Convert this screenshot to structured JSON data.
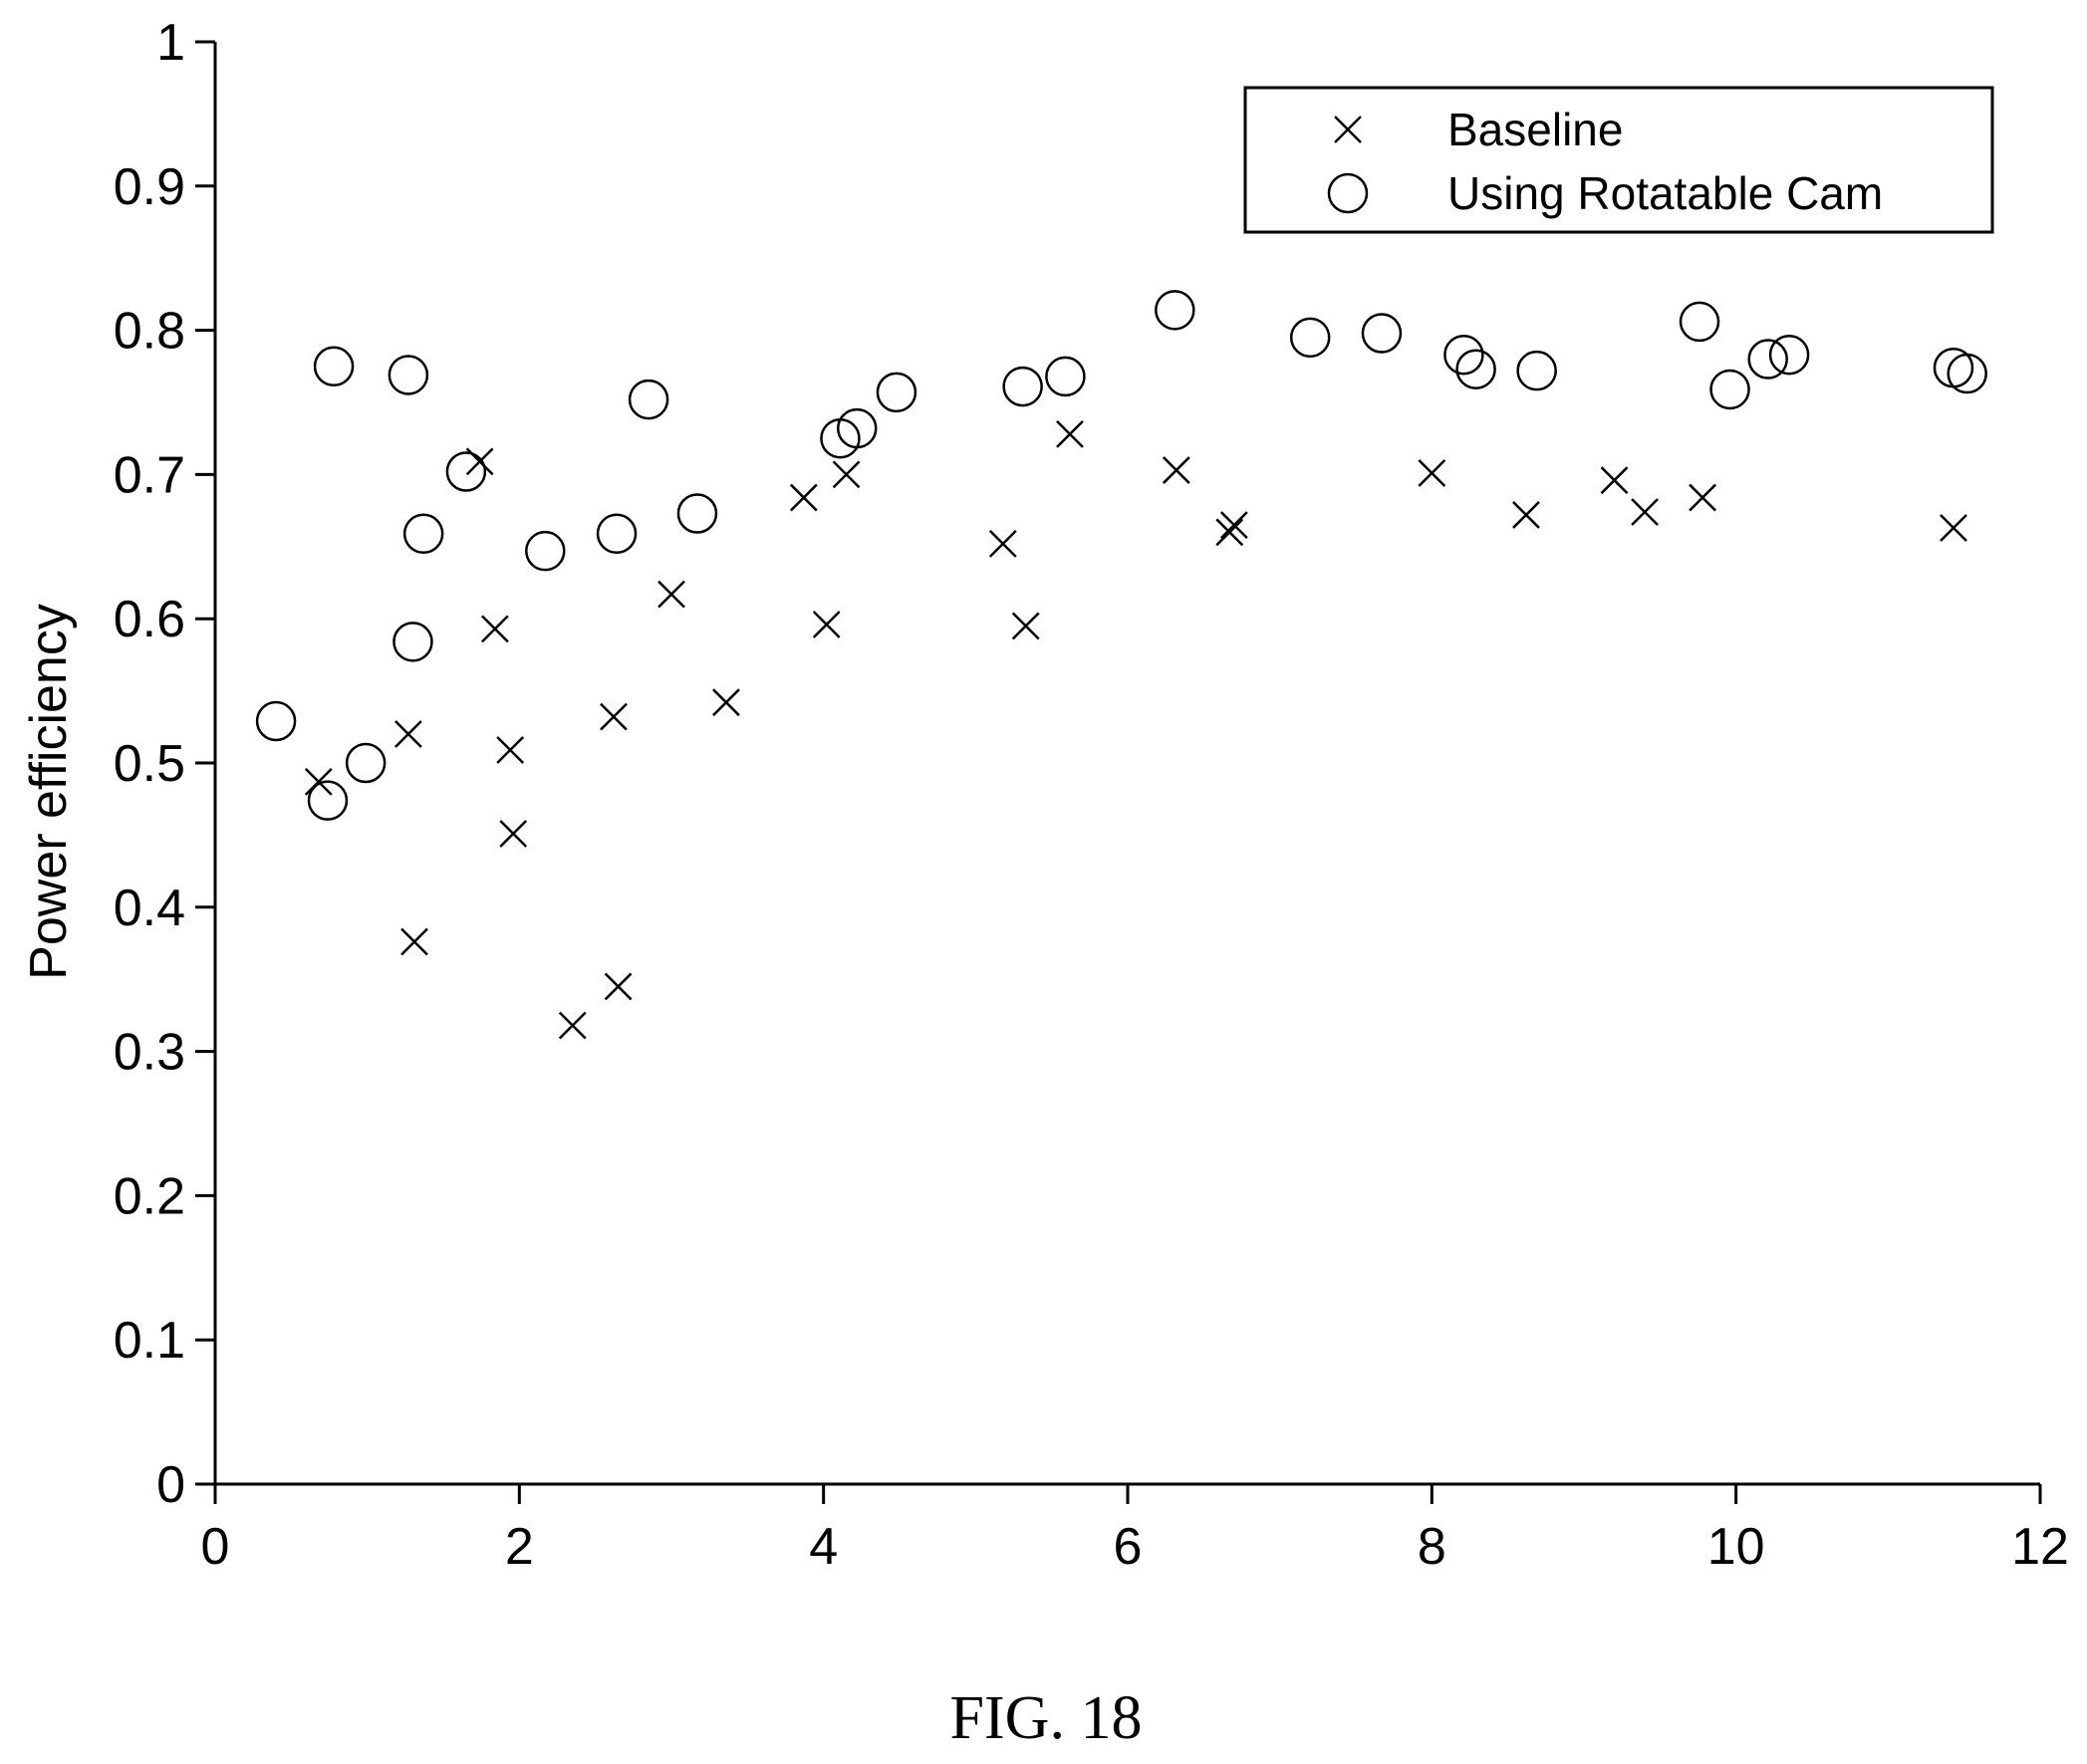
{
  "caption": "FIG. 18",
  "chart_data": {
    "type": "scatter",
    "title": "",
    "xlabel": "",
    "ylabel": "Power efficiency",
    "xlim": [
      0,
      12
    ],
    "ylim": [
      0,
      1
    ],
    "xticks": [
      "0",
      "2",
      "4",
      "6",
      "8",
      "10",
      "12"
    ],
    "yticks": [
      "0",
      "0.1",
      "0.2",
      "0.3",
      "0.4",
      "0.5",
      "0.6",
      "0.7",
      "0.8",
      "0.9",
      "1"
    ],
    "grid": false,
    "legend_position": "top-right",
    "series": [
      {
        "name": "Baseline",
        "marker": "x",
        "color": "#000000",
        "points": [
          [
            0.68,
            0.487
          ],
          [
            1.27,
            0.52
          ],
          [
            1.31,
            0.376
          ],
          [
            1.74,
            0.709
          ],
          [
            1.84,
            0.593
          ],
          [
            1.94,
            0.509
          ],
          [
            1.96,
            0.451
          ],
          [
            2.35,
            0.318
          ],
          [
            2.62,
            0.532
          ],
          [
            2.65,
            0.345
          ],
          [
            3.0,
            0.617
          ],
          [
            3.36,
            0.542
          ],
          [
            3.87,
            0.684
          ],
          [
            4.02,
            0.596
          ],
          [
            4.15,
            0.7
          ],
          [
            5.18,
            0.652
          ],
          [
            5.33,
            0.595
          ],
          [
            5.62,
            0.728
          ],
          [
            6.32,
            0.703
          ],
          [
            6.67,
            0.66
          ],
          [
            6.7,
            0.665
          ],
          [
            8.0,
            0.701
          ],
          [
            8.62,
            0.672
          ],
          [
            9.2,
            0.696
          ],
          [
            9.4,
            0.674
          ],
          [
            9.78,
            0.684
          ],
          [
            11.43,
            0.663
          ]
        ]
      },
      {
        "name": "Using Rotatable Cam",
        "marker": "o",
        "color": "#000000",
        "points": [
          [
            0.4,
            0.529
          ],
          [
            0.74,
            0.474
          ],
          [
            0.78,
            0.775
          ],
          [
            0.99,
            0.5
          ],
          [
            1.27,
            0.769
          ],
          [
            1.3,
            0.584
          ],
          [
            1.37,
            0.659
          ],
          [
            1.65,
            0.702
          ],
          [
            2.17,
            0.647
          ],
          [
            2.64,
            0.659
          ],
          [
            2.85,
            0.752
          ],
          [
            3.17,
            0.673
          ],
          [
            4.11,
            0.725
          ],
          [
            4.22,
            0.732
          ],
          [
            4.48,
            0.757
          ],
          [
            5.31,
            0.761
          ],
          [
            5.59,
            0.768
          ],
          [
            6.31,
            0.814
          ],
          [
            7.2,
            0.795
          ],
          [
            7.67,
            0.798
          ],
          [
            8.21,
            0.783
          ],
          [
            8.29,
            0.773
          ],
          [
            8.69,
            0.772
          ],
          [
            9.76,
            0.806
          ],
          [
            9.96,
            0.759
          ],
          [
            10.21,
            0.78
          ],
          [
            10.35,
            0.783
          ],
          [
            11.43,
            0.774
          ],
          [
            11.52,
            0.77
          ]
        ]
      }
    ]
  }
}
